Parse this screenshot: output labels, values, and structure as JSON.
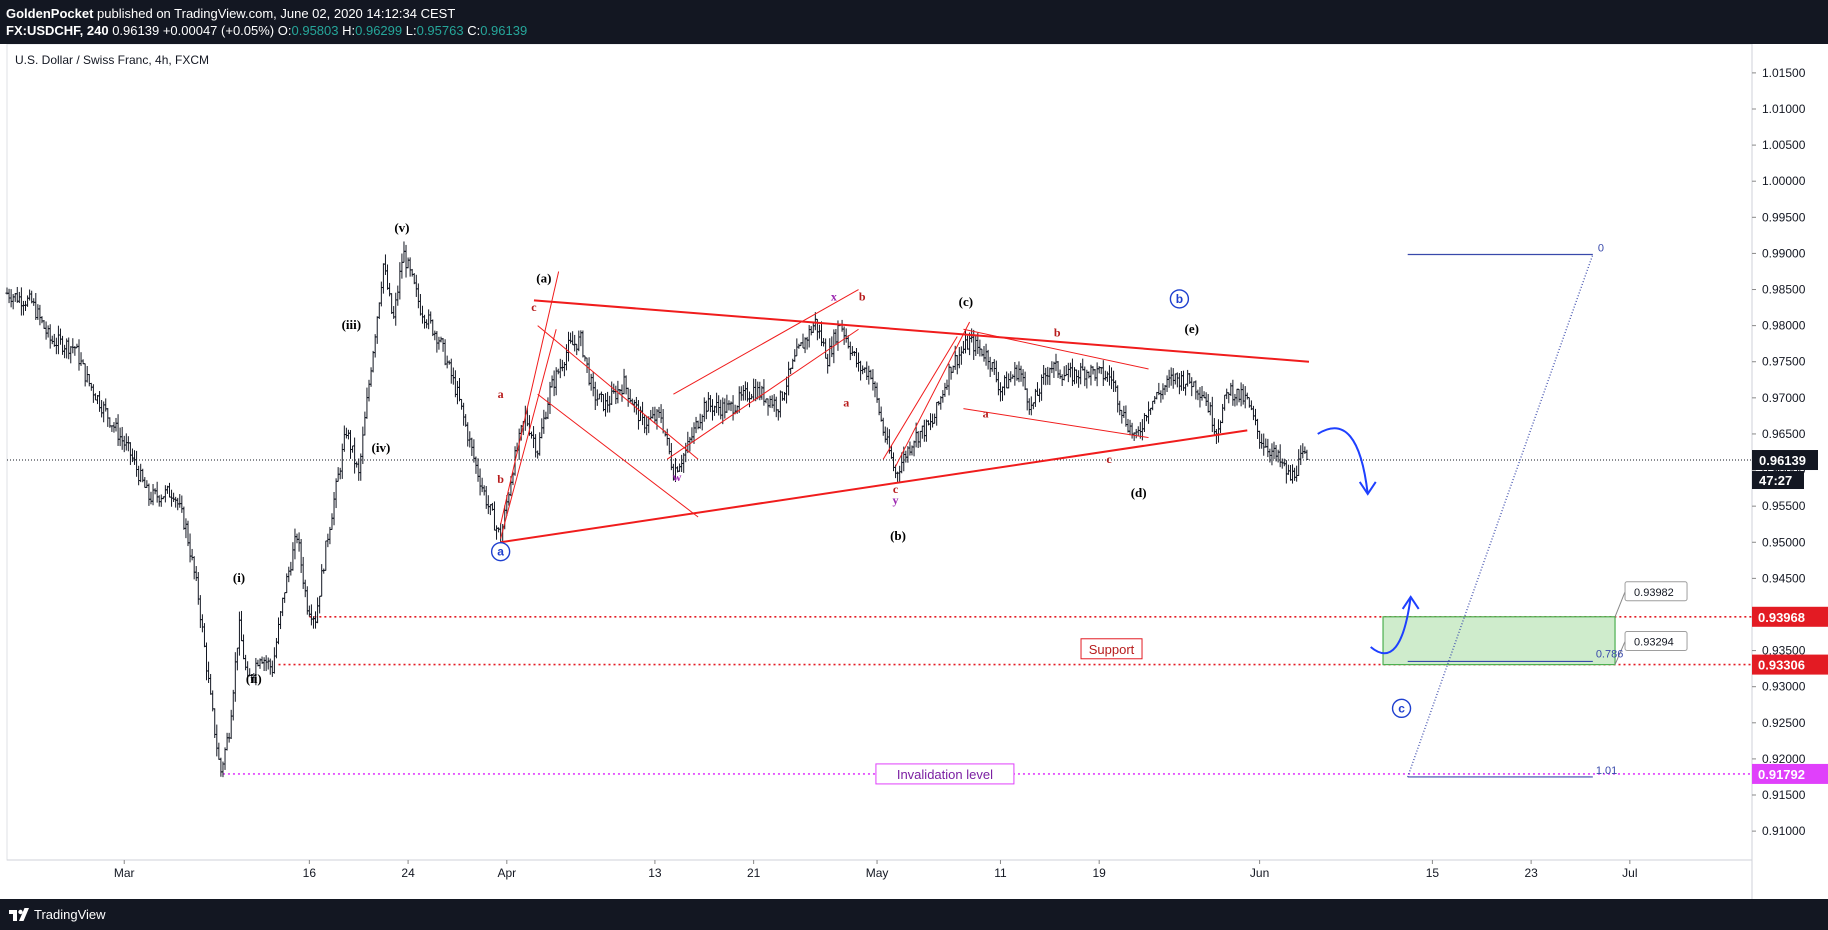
{
  "header": {
    "author": "GoldenPocket",
    "published_text": "published on TradingView.com, June 02, 2020 14:12:34 CEST",
    "symbol": "FX:USDCHF, 240",
    "last": "0.96139",
    "change": "+0.00047 (+0.05%)",
    "o_label": "O:",
    "o_value": "0.95803",
    "h_label": "H:",
    "h_value": "0.96299",
    "l_label": "L:",
    "l_value": "0.95763",
    "c_label": "C:",
    "c_value": "0.96139"
  },
  "footer": {
    "brand": "TradingView",
    "logo_icon": "tradingview-logo-icon"
  },
  "chart_data": {
    "type": "candlestick",
    "title": "U.S. Dollar / Swiss Franc, 4h, FXCM",
    "ylim": [
      0.906,
      1.019
    ],
    "y_ticks": [
      "1.01500",
      "1.01000",
      "1.00500",
      "1.00000",
      "0.99500",
      "0.99000",
      "0.98500",
      "0.98000",
      "0.97500",
      "0.97000",
      "0.96500",
      "0.96000",
      "0.95500",
      "0.95000",
      "0.94500",
      "0.94000",
      "0.93500",
      "0.93000",
      "0.92500",
      "0.92000",
      "0.91500",
      "0.91000"
    ],
    "x_labels": [
      {
        "label": "Mar",
        "t": 0
      },
      {
        "label": "16",
        "t": 15
      },
      {
        "label": "24",
        "t": 23
      },
      {
        "label": "Apr",
        "t": 31
      },
      {
        "label": "13",
        "t": 43
      },
      {
        "label": "21",
        "t": 51
      },
      {
        "label": "May",
        "t": 61
      },
      {
        "label": "11",
        "t": 71
      },
      {
        "label": "19",
        "t": 79
      },
      {
        "label": "Jun",
        "t": 92
      },
      {
        "label": "15",
        "t": 106
      },
      {
        "label": "23",
        "t": 114
      },
      {
        "label": "Jul",
        "t": 122
      }
    ],
    "price_path": [
      {
        "t": -9.5,
        "p": 0.9845
      },
      {
        "t": -7.5,
        "p": 0.9832
      },
      {
        "t": -6,
        "p": 0.978
      },
      {
        "t": -4,
        "p": 0.977
      },
      {
        "t": -3,
        "p": 0.9725
      },
      {
        "t": -1.5,
        "p": 0.968
      },
      {
        "t": 0.5,
        "p": 0.9622
      },
      {
        "t": 2,
        "p": 0.9562
      },
      {
        "t": 4,
        "p": 0.957
      },
      {
        "t": 5,
        "p": 0.952
      },
      {
        "t": 6,
        "p": 0.9425
      },
      {
        "t": 7,
        "p": 0.9282
      },
      {
        "t": 7.8,
        "p": 0.918
      },
      {
        "t": 8.5,
        "p": 0.924
      },
      {
        "t": 9.3,
        "p": 0.9385
      },
      {
        "t": 10,
        "p": 0.9305
      },
      {
        "t": 11,
        "p": 0.9345
      },
      {
        "t": 12,
        "p": 0.9325
      },
      {
        "t": 13,
        "p": 0.9435
      },
      {
        "t": 14,
        "p": 0.951
      },
      {
        "t": 14.8,
        "p": 0.9415
      },
      {
        "t": 15.5,
        "p": 0.9395
      },
      {
        "t": 16.5,
        "p": 0.951
      },
      {
        "t": 18,
        "p": 0.9655
      },
      {
        "t": 19,
        "p": 0.9592
      },
      {
        "t": 20,
        "p": 0.9745
      },
      {
        "t": 21,
        "p": 0.9885
      },
      {
        "t": 21.8,
        "p": 0.9805
      },
      {
        "t": 22.6,
        "p": 0.9902
      },
      {
        "t": 24,
        "p": 0.9825
      },
      {
        "t": 25.5,
        "p": 0.9782
      },
      {
        "t": 27,
        "p": 0.9705
      },
      {
        "t": 28.5,
        "p": 0.9605
      },
      {
        "t": 29.5,
        "p": 0.955
      },
      {
        "t": 30.5,
        "p": 0.9505
      },
      {
        "t": 31.5,
        "p": 0.9605
      },
      {
        "t": 32.5,
        "p": 0.9675
      },
      {
        "t": 33.5,
        "p": 0.9628
      },
      {
        "t": 34.5,
        "p": 0.971
      },
      {
        "t": 36,
        "p": 0.977
      },
      {
        "t": 37,
        "p": 0.978
      },
      {
        "t": 38,
        "p": 0.9705
      },
      {
        "t": 39,
        "p": 0.969
      },
      {
        "t": 40.5,
        "p": 0.972
      },
      {
        "t": 42,
        "p": 0.9665
      },
      {
        "t": 43.5,
        "p": 0.9675
      },
      {
        "t": 44.5,
        "p": 0.9598
      },
      {
        "t": 45.5,
        "p": 0.9625
      },
      {
        "t": 47,
        "p": 0.969
      },
      {
        "t": 49,
        "p": 0.9685
      },
      {
        "t": 51,
        "p": 0.9712
      },
      {
        "t": 53,
        "p": 0.969
      },
      {
        "t": 54.5,
        "p": 0.976
      },
      {
        "t": 56,
        "p": 0.9805
      },
      {
        "t": 57,
        "p": 0.9755
      },
      {
        "t": 58,
        "p": 0.9805
      },
      {
        "t": 59.5,
        "p": 0.9742
      },
      {
        "t": 60.5,
        "p": 0.9735
      },
      {
        "t": 61.5,
        "p": 0.9655
      },
      {
        "t": 62.5,
        "p": 0.9595
      },
      {
        "t": 64,
        "p": 0.9645
      },
      {
        "t": 65.5,
        "p": 0.9665
      },
      {
        "t": 67,
        "p": 0.9745
      },
      {
        "t": 68.5,
        "p": 0.9778
      },
      {
        "t": 70,
        "p": 0.9758
      },
      {
        "t": 71,
        "p": 0.9712
      },
      {
        "t": 72.5,
        "p": 0.974
      },
      {
        "t": 73.5,
        "p": 0.9685
      },
      {
        "t": 75,
        "p": 0.9745
      },
      {
        "t": 76.5,
        "p": 0.973
      },
      {
        "t": 78,
        "p": 0.9738
      },
      {
        "t": 80,
        "p": 0.9728
      },
      {
        "t": 81,
        "p": 0.9675
      },
      {
        "t": 82,
        "p": 0.9642
      },
      {
        "t": 83,
        "p": 0.969
      },
      {
        "t": 85,
        "p": 0.9728
      },
      {
        "t": 86.5,
        "p": 0.9722
      },
      {
        "t": 87.5,
        "p": 0.9705
      },
      {
        "t": 88.5,
        "p": 0.9655
      },
      {
        "t": 89.5,
        "p": 0.9712
      },
      {
        "t": 91,
        "p": 0.9695
      },
      {
        "t": 92,
        "p": 0.9645
      },
      {
        "t": 93.5,
        "p": 0.9615
      },
      {
        "t": 94.5,
        "p": 0.9588
      },
      {
        "t": 95.5,
        "p": 0.9618
      },
      {
        "t": 95.9,
        "p": 0.96139
      }
    ],
    "current_price": {
      "value": 0.96139,
      "label": "0.96139",
      "countdown": "47:27"
    },
    "levels": [
      {
        "name": "support-upper",
        "value": 0.93968,
        "label": "0.93968",
        "color": "#e31b23",
        "t_start": 15
      },
      {
        "name": "support-lower",
        "value": 0.93306,
        "label": "0.93306",
        "color": "#e31b23",
        "t_start": 12.5
      },
      {
        "name": "invalidation",
        "value": 0.91792,
        "label": "0.91792",
        "color": "#e040fb",
        "t_start": 8
      }
    ],
    "zone": {
      "t_start": 102,
      "t_end": 120.8,
      "p_low": 0.93306,
      "p_high": 0.93968,
      "fill": "#cfeccc",
      "stroke": "#4caf50"
    },
    "callouts": [
      {
        "label": "0.93982",
        "price": 0.93982
      },
      {
        "label": "0.93294",
        "price": 0.93294
      }
    ],
    "fib": {
      "t_start": 104,
      "t_end": 119,
      "p0": 0.98985,
      "p0_label": "0",
      "p786": 0.9335,
      "p786_label": "0.786",
      "p101": 0.9175,
      "p101_label": "1.01",
      "color": "#3949ab"
    },
    "text_boxes": [
      {
        "text": "Support",
        "t": 80,
        "p": 0.93525,
        "color": "#e31b23"
      },
      {
        "text": "Invalidation level",
        "t": 66.5,
        "p": 0.91792,
        "color": "#e040fb"
      }
    ],
    "trendlines": [
      {
        "t1": 33.2,
        "p1": 0.9835,
        "t2": 96,
        "p2": 0.975,
        "w": 2
      },
      {
        "t1": 30.5,
        "p1": 0.95,
        "t2": 91,
        "p2": 0.9655,
        "w": 2
      },
      {
        "t1": 30.5,
        "p1": 0.9525,
        "t2": 35.2,
        "p2": 0.9875,
        "w": 1
      },
      {
        "t1": 30.5,
        "p1": 0.9505,
        "t2": 35,
        "p2": 0.9795,
        "w": 1
      },
      {
        "t1": 33.5,
        "p1": 0.98,
        "t2": 46.5,
        "p2": 0.9615,
        "w": 1
      },
      {
        "t1": 33.5,
        "p1": 0.9705,
        "t2": 46.5,
        "p2": 0.9535,
        "w": 1
      },
      {
        "t1": 44,
        "p1": 0.9615,
        "t2": 59.5,
        "p2": 0.9795,
        "w": 1
      },
      {
        "t1": 44.5,
        "p1": 0.9705,
        "t2": 59.5,
        "p2": 0.985,
        "w": 1
      },
      {
        "t1": 61.5,
        "p1": 0.9615,
        "t2": 67.5,
        "p2": 0.9785,
        "w": 1
      },
      {
        "t1": 62.5,
        "p1": 0.9605,
        "t2": 68.5,
        "p2": 0.9805,
        "w": 1
      },
      {
        "t1": 68,
        "p1": 0.9795,
        "t2": 83,
        "p2": 0.974,
        "w": 1
      },
      {
        "t1": 68,
        "p1": 0.9685,
        "t2": 83,
        "p2": 0.9645,
        "w": 1
      }
    ],
    "wave_labels": [
      {
        "text": "(v)",
        "t": 22.5,
        "p": 0.993,
        "color": "#000000",
        "size": 13
      },
      {
        "text": "(iii)",
        "t": 18.4,
        "p": 0.9795,
        "color": "#000000",
        "size": 13
      },
      {
        "text": "(iv)",
        "t": 20.8,
        "p": 0.9625,
        "color": "#000000",
        "size": 13
      },
      {
        "text": "(i)",
        "t": 9.3,
        "p": 0.9445,
        "color": "#000000",
        "size": 13
      },
      {
        "text": "(ii)",
        "t": 10.5,
        "p": 0.9305,
        "color": "#000000",
        "size": 13
      },
      {
        "text": "(a)",
        "t": 34,
        "p": 0.986,
        "color": "#000000",
        "size": 13
      },
      {
        "text": "(b)",
        "t": 62.7,
        "p": 0.9503,
        "color": "#000000",
        "size": 13
      },
      {
        "text": "(c)",
        "t": 68.2,
        "p": 0.9827,
        "color": "#000000",
        "size": 13
      },
      {
        "text": "(d)",
        "t": 82.2,
        "p": 0.9563,
        "color": "#000000",
        "size": 13
      },
      {
        "text": "(e)",
        "t": 86.5,
        "p": 0.979,
        "color": "#000000",
        "size": 13
      },
      {
        "text": "a",
        "t": 30.5,
        "p": 0.97,
        "color": "#b71c1c",
        "size": 12
      },
      {
        "text": "b",
        "t": 30.5,
        "p": 0.9582,
        "color": "#b71c1c",
        "size": 12
      },
      {
        "text": "c",
        "t": 33.2,
        "p": 0.982,
        "color": "#b71c1c",
        "size": 12
      },
      {
        "text": "w",
        "t": 44.8,
        "p": 0.9585,
        "color": "#9c27b0",
        "size": 12
      },
      {
        "text": "x",
        "t": 57.5,
        "p": 0.9835,
        "color": "#9c27b0",
        "size": 12
      },
      {
        "text": "a",
        "t": 58.5,
        "p": 0.9688,
        "color": "#b71c1c",
        "size": 12
      },
      {
        "text": "b",
        "t": 59.8,
        "p": 0.9835,
        "color": "#b71c1c",
        "size": 12
      },
      {
        "text": "c",
        "t": 62.5,
        "p": 0.9568,
        "color": "#b71c1c",
        "size": 12
      },
      {
        "text": "y",
        "t": 62.5,
        "p": 0.9553,
        "color": "#9c27b0",
        "size": 12
      },
      {
        "text": "a",
        "t": 69.8,
        "p": 0.9673,
        "color": "#b71c1c",
        "size": 12
      },
      {
        "text": "b",
        "t": 75.6,
        "p": 0.9785,
        "color": "#b71c1c",
        "size": 12
      },
      {
        "text": "c",
        "t": 79.8,
        "p": 0.961,
        "color": "#b71c1c",
        "size": 12
      }
    ],
    "circle_labels": [
      {
        "text": "a",
        "t": 30.5,
        "p": 0.9487
      },
      {
        "text": "b",
        "t": 85.5,
        "p": 0.9837
      },
      {
        "text": "c",
        "t": 103.5,
        "p": 0.927
      }
    ],
    "arrows_color": "#1e40ff"
  }
}
